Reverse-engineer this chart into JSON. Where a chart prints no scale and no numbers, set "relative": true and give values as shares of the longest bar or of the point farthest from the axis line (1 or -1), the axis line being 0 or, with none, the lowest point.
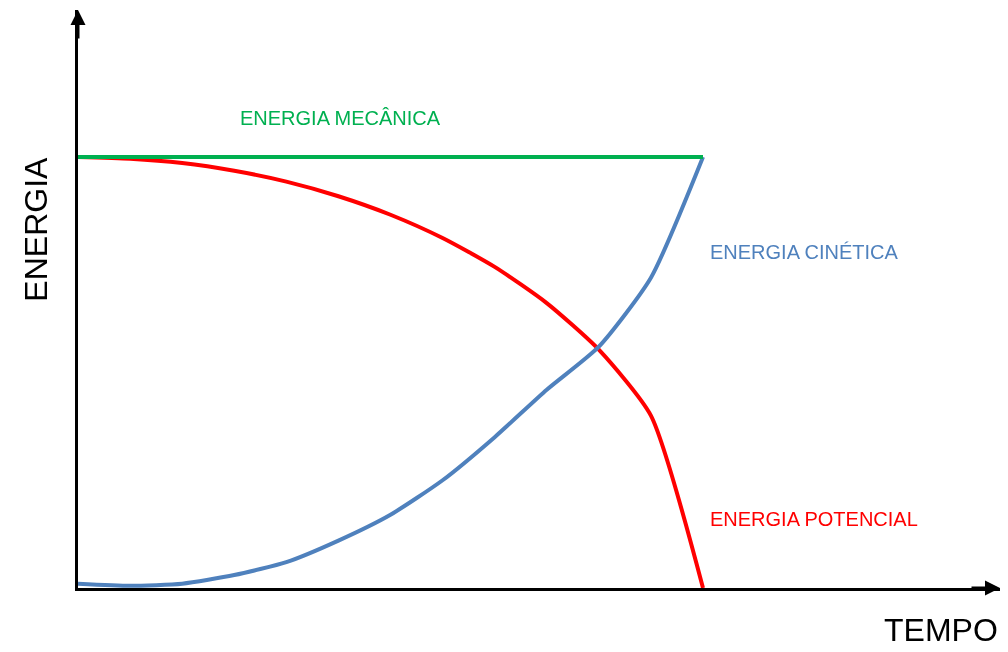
{
  "chart_data": {
    "type": "line",
    "relative": true,
    "xlabel": "TEMPO",
    "ylabel": "ENERGIA",
    "legend": false,
    "marker": "none",
    "line_style": "solid",
    "categories": [
      null,
      null,
      null,
      null,
      null,
      null,
      null,
      null,
      null,
      null,
      null,
      null,
      null
    ],
    "series": [
      {
        "name": "ENERGIA MECÂNICA",
        "color": "#00b050",
        "values": [
          1,
          1,
          1,
          1,
          1,
          1,
          1,
          1,
          1,
          1,
          1,
          1,
          1
        ]
      },
      {
        "name": "ENERGIA CINÉTICA",
        "color": "#4f81bd",
        "values": [
          0.01,
          0.005,
          0.01,
          0.03,
          0.06,
          0.11,
          0.17,
          0.25,
          0.35,
          0.46,
          0.56,
          0.72,
          1.0
        ]
      },
      {
        "name": "ENERGIA POTENCIAL",
        "color": "#ff0000",
        "values": [
          1,
          0.996,
          0.986,
          0.968,
          0.943,
          0.909,
          0.866,
          0.812,
          0.745,
          0.661,
          0.553,
          0.4,
          0
        ]
      }
    ]
  }
}
